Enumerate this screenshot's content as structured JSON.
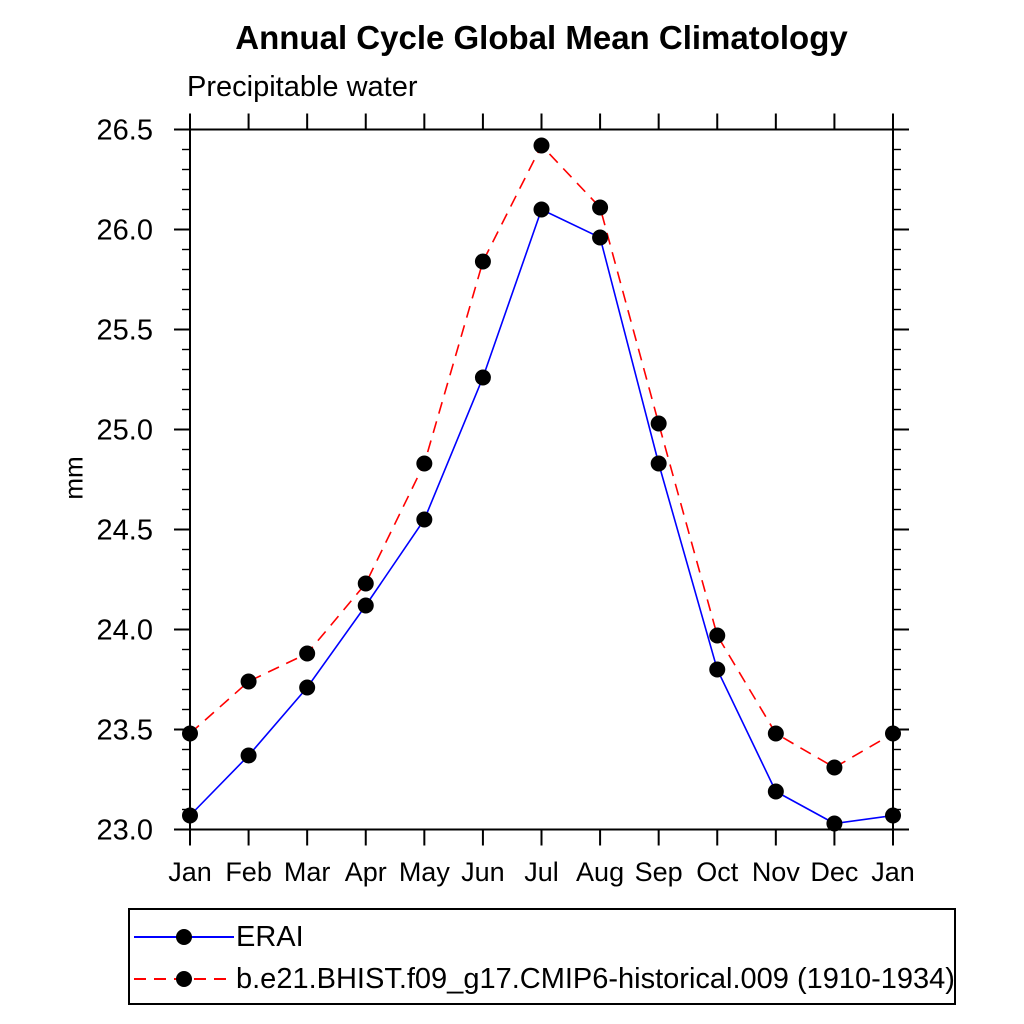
{
  "chart": {
    "title": "Annual Cycle Global Mean Climatology",
    "subtitle": "Precipitable water",
    "ylabel": "mm"
  },
  "chart_data": {
    "type": "line",
    "title": "Annual Cycle Global Mean Climatology",
    "subtitle": "Precipitable water",
    "xlabel": "",
    "ylabel": "mm",
    "categories": [
      "Jan",
      "Feb",
      "Mar",
      "Apr",
      "May",
      "Jun",
      "Jul",
      "Aug",
      "Sep",
      "Oct",
      "Nov",
      "Dec",
      "Jan"
    ],
    "ylim": [
      23.0,
      26.5
    ],
    "ytick_step": 0.5,
    "ytick_minor_step": 0.1,
    "ytick_labels": [
      "23.0",
      "23.5",
      "24.0",
      "24.5",
      "25.0",
      "25.5",
      "26.0",
      "26.5"
    ],
    "grid": false,
    "legend_position": "bottom",
    "marker": "filled-circle",
    "marker_color": "#000000",
    "marker_radius": 8,
    "axis_color": "#000000",
    "series": [
      {
        "name": "ERAI",
        "color": "#0000ff",
        "line_style": "solid",
        "values": [
          23.07,
          23.37,
          23.71,
          24.12,
          24.55,
          25.26,
          26.1,
          25.96,
          24.83,
          23.8,
          23.19,
          23.03,
          23.07
        ]
      },
      {
        "name": "b.e21.BHIST.f09_g17.CMIP6-historical.009 (1910-1934)",
        "color": "#ff0000",
        "line_style": "dashed",
        "values": [
          23.48,
          23.74,
          23.88,
          24.23,
          24.83,
          25.84,
          26.42,
          26.11,
          25.03,
          23.97,
          23.48,
          23.31,
          23.48
        ]
      }
    ]
  }
}
